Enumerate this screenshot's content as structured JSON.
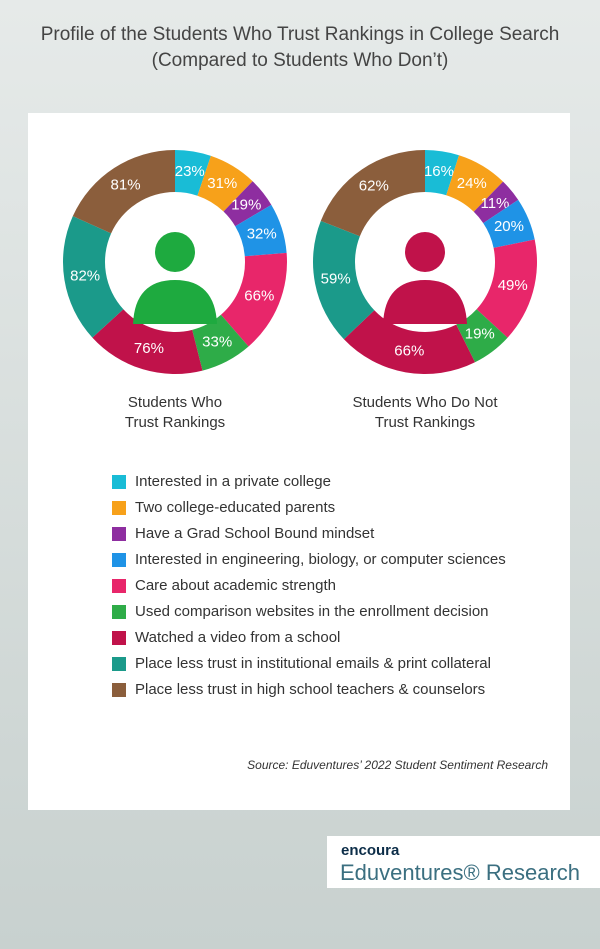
{
  "chart_data": {
    "type": "donut",
    "title": "Profile of the Students Who Trust Rankings in College Search (Compared to Students Who Don’t)",
    "categories": [
      "Interested in a private college",
      "Two college-educated parents",
      "Have a Grad School Bound mindset",
      "Interested in engineering, biology, or computer sciences",
      "Care about academic strength",
      "Used comparison websites in the enrollment decision",
      "Watched a video from a school",
      "Place less trust in institutional emails & print collateral",
      "Place less trust in high school teachers & counselors"
    ],
    "colors": [
      "#19bcd6",
      "#f7a11a",
      "#8e2ea0",
      "#1f93e6",
      "#e8266a",
      "#2eac48",
      "#c0124a",
      "#1b9a8a",
      "#8b5e3c"
    ],
    "series": [
      {
        "name": "Students Who Trust Rankings",
        "color": "#1eaa3f",
        "values": [
          23,
          31,
          19,
          32,
          66,
          33,
          76,
          82,
          81
        ],
        "value_labels": [
          "23%",
          "31%",
          "19%",
          "32%",
          "66%",
          "33%",
          "76%",
          "82%",
          "81%"
        ]
      },
      {
        "name": "Students Who Do Not Trust Rankings",
        "color": "#c0124a",
        "values": [
          16,
          24,
          11,
          20,
          49,
          19,
          66,
          59,
          62
        ],
        "value_labels": [
          "16%",
          "24%",
          "11%",
          "20%",
          "49%",
          "19%",
          "66%",
          "59%",
          "62%"
        ]
      }
    ],
    "source": "Source: Eduventures’ 2022 Student Sentiment Research"
  },
  "branding": {
    "logo": "encoura",
    "subtitle": "Eduventures® Research"
  }
}
